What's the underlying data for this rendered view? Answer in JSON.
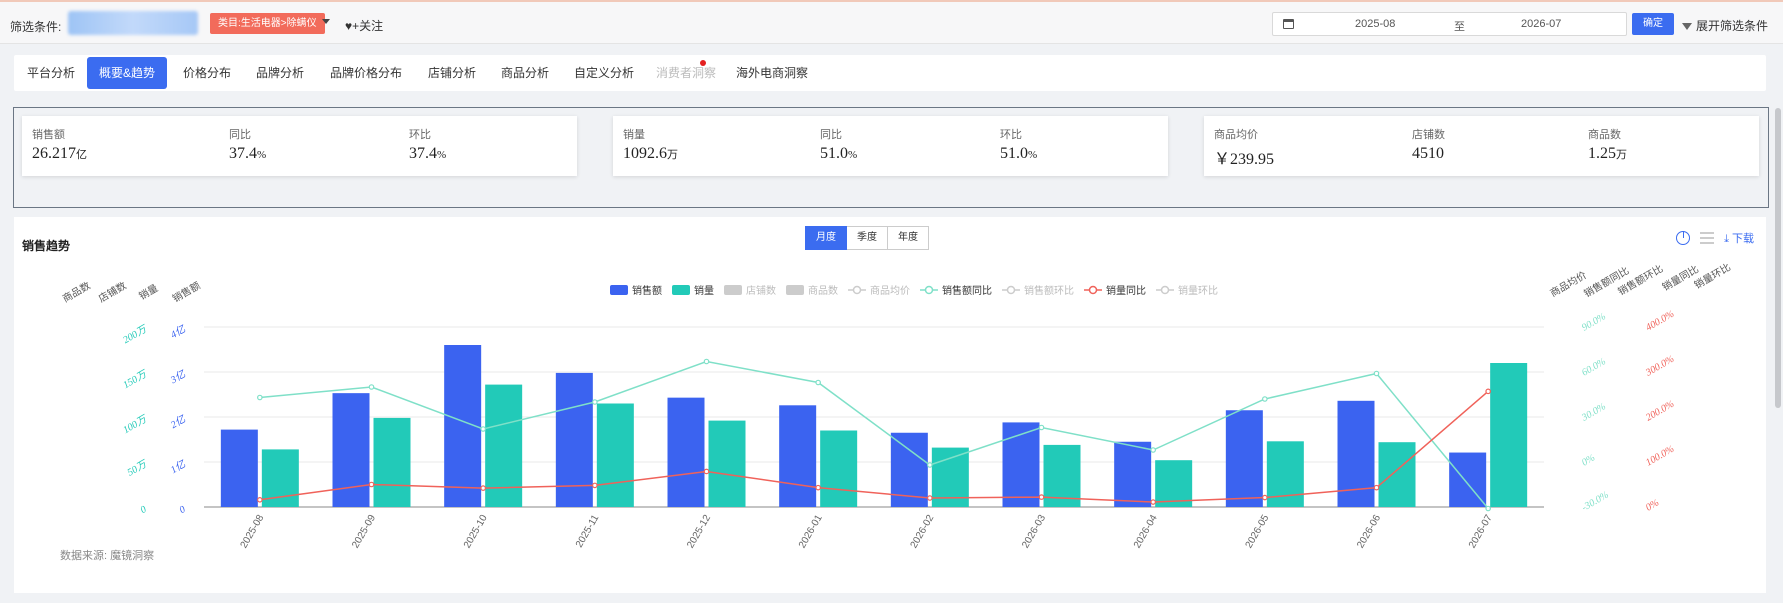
{
  "filter": {
    "label": "筛选条件:",
    "category_tag": "类目:生活电器>除螨仪",
    "follow_label": "♥+关注",
    "date_start": "2025-08",
    "date_sep": "至",
    "date_end": "2026-07",
    "confirm_label": "确定",
    "expand_label": "展开筛选条件"
  },
  "tabs": [
    {
      "label": "平台分析"
    },
    {
      "label": "概要&趋势"
    },
    {
      "label": "价格分布"
    },
    {
      "label": "品牌分析"
    },
    {
      "label": "品牌价格分布"
    },
    {
      "label": "店铺分析"
    },
    {
      "label": "商品分析"
    },
    {
      "label": "自定义分析"
    },
    {
      "label": "消费者洞察"
    },
    {
      "label": "海外电商洞察"
    }
  ],
  "kpi": {
    "sales_amount": {
      "label": "销售额",
      "value": "26.217",
      "unit": "亿"
    },
    "sales_amount_yoy": {
      "label": "同比",
      "value": "37.4",
      "unit": "%"
    },
    "sales_amount_mom": {
      "label": "环比",
      "value": "37.4",
      "unit": "%"
    },
    "volume": {
      "label": "销量",
      "value": "1092.6",
      "unit": "万"
    },
    "volume_yoy": {
      "label": "同比",
      "value": "51.0",
      "unit": "%"
    },
    "volume_mom": {
      "label": "环比",
      "value": "51.0",
      "unit": "%"
    },
    "avg_price": {
      "label": "商品均价",
      "value": "￥239.95",
      "unit": ""
    },
    "store_count": {
      "label": "店铺数",
      "value": "4510",
      "unit": ""
    },
    "product_count": {
      "label": "商品数",
      "value": "1.25",
      "unit": "万"
    }
  },
  "chart": {
    "title": "销售趋势",
    "periods": [
      "月度",
      "季度",
      "年度"
    ],
    "download_label": "下载",
    "source": "数据来源: 魔镜洞察"
  },
  "chart_data": {
    "type": "bar",
    "categories": [
      "2025-08",
      "2025-09",
      "2025-10",
      "2025-11",
      "2025-12",
      "2026-01",
      "2026-02",
      "2026-03",
      "2026-04",
      "2026-05",
      "2026-06",
      "2026-07"
    ],
    "legend": [
      {
        "name": "销售额",
        "kind": "bar",
        "color": "#3b63f0",
        "active": true
      },
      {
        "name": "销量",
        "kind": "bar",
        "color": "#22cab8",
        "active": true
      },
      {
        "name": "店铺数",
        "kind": "bar",
        "color": "#cccccc",
        "active": false
      },
      {
        "name": "商品数",
        "kind": "bar",
        "color": "#cccccc",
        "active": false
      },
      {
        "name": "商品均价",
        "kind": "line",
        "color": "#cccccc",
        "active": false
      },
      {
        "name": "销售额同比",
        "kind": "line",
        "color": "#7fe0c8",
        "active": true
      },
      {
        "name": "销售额环比",
        "kind": "line",
        "color": "#cccccc",
        "active": false
      },
      {
        "name": "销量同比",
        "kind": "line",
        "color": "#f0625a",
        "active": true
      },
      {
        "name": "销量环比",
        "kind": "line",
        "color": "#cccccc",
        "active": false
      }
    ],
    "series": [
      {
        "name": "销售额",
        "axis": "sales",
        "values": [
          1.72,
          2.53,
          3.6,
          2.98,
          2.43,
          2.26,
          1.65,
          1.88,
          1.45,
          2.15,
          2.36,
          1.21
        ]
      },
      {
        "name": "销量",
        "axis": "volume",
        "values": [
          64,
          99,
          136,
          115,
          96,
          85,
          66,
          69,
          52,
          73,
          72,
          160
        ]
      },
      {
        "name": "销售额同比",
        "axis": "yoy_sales",
        "values": [
          43,
          50,
          22,
          40,
          67,
          53,
          -2,
          23,
          8,
          42,
          59,
          -31
        ]
      },
      {
        "name": "销量同比",
        "axis": "yoy_volume",
        "values": [
          16,
          50,
          42,
          48,
          79,
          43,
          20,
          22,
          11,
          21,
          43,
          257
        ]
      }
    ],
    "axes": {
      "left_titles": [
        "商品数",
        "店铺数",
        "销量",
        "销售额"
      ],
      "right_titles": [
        "商品均价",
        "销售额同比",
        "销售额环比",
        "销量同比",
        "销量环比"
      ],
      "sales": {
        "ticks": [
          "0",
          "1亿",
          "2亿",
          "3亿",
          "4亿"
        ],
        "range": [
          0,
          4
        ]
      },
      "volume": {
        "ticks": [
          "0",
          "50万",
          "100万",
          "150万",
          "200万"
        ],
        "range": [
          0,
          200
        ]
      },
      "yoy_sales": {
        "ticks": [
          "-30.0%",
          "0%",
          "30.0%",
          "60.0%",
          "90.0%"
        ],
        "range": [
          -30,
          90
        ]
      },
      "yoy_volume": {
        "ticks": [
          "0%",
          "100.0%",
          "200.0%",
          "300.0%",
          "400.0%"
        ],
        "range": [
          0,
          400
        ]
      }
    }
  }
}
